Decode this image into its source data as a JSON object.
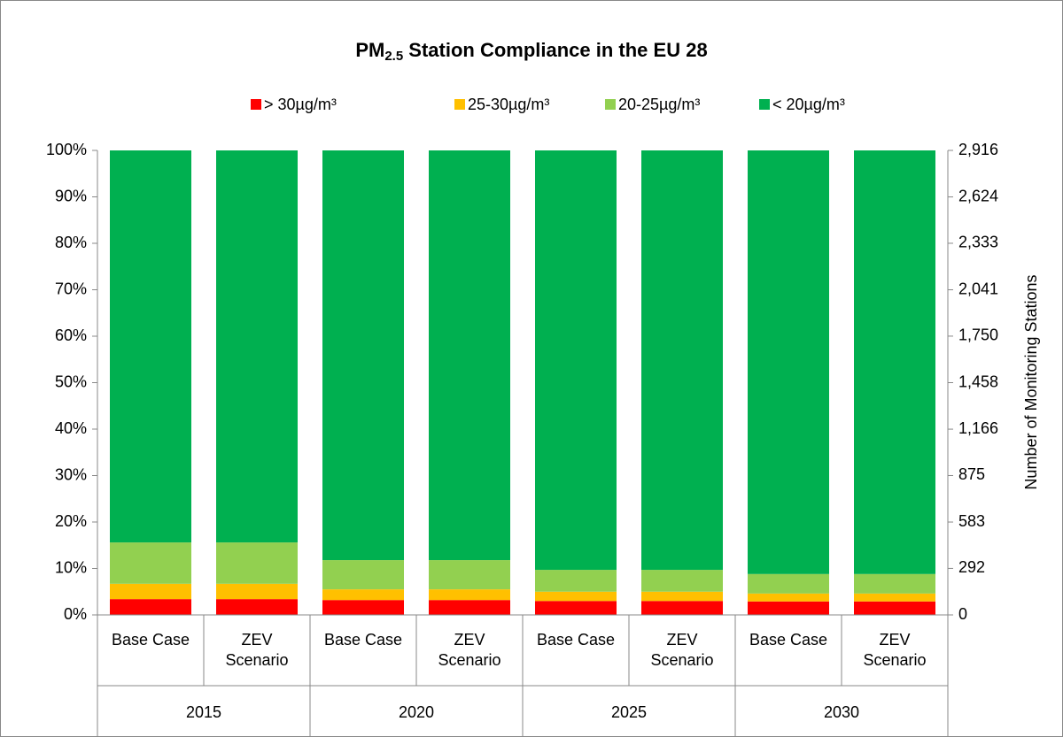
{
  "chart_data": {
    "type": "stacked_bar",
    "title": [
      "PM",
      "2.5",
      " Station Compliance in the EU 28"
    ],
    "categories": [
      "Base Case",
      "ZEV Scenario",
      "Base Case",
      "ZEV Scenario",
      "Base Case",
      "ZEV Scenario",
      "Base Case",
      "ZEV Scenario"
    ],
    "groups": [
      "2015",
      "2020",
      "2025",
      "2030"
    ],
    "series": [
      {
        "name": "> 30µg/m³",
        "color": "#ff0000",
        "values": [
          3.4,
          3.4,
          3.2,
          3.2,
          3.0,
          3.0,
          2.9,
          2.9
        ]
      },
      {
        "name": "25-30µg/m³",
        "color": "#ffc000",
        "values": [
          3.3,
          3.3,
          2.3,
          2.3,
          2.0,
          2.0,
          1.7,
          1.7
        ]
      },
      {
        "name": "20-25µg/m³",
        "color": "#92d050",
        "values": [
          8.9,
          8.9,
          6.3,
          6.3,
          4.7,
          4.7,
          4.2,
          4.2
        ]
      },
      {
        "name": "< 20µg/m³",
        "color": "#00b050",
        "values": [
          84.4,
          84.4,
          88.2,
          88.2,
          90.3,
          90.3,
          91.2,
          91.2
        ]
      }
    ],
    "ylim": [
      0,
      100
    ],
    "yticks": [
      {
        "value": 0,
        "label": "0%"
      },
      {
        "value": 10,
        "label": "10%"
      },
      {
        "value": 20,
        "label": "20%"
      },
      {
        "value": 30,
        "label": "30%"
      },
      {
        "value": 40,
        "label": "40%"
      },
      {
        "value": 50,
        "label": "50%"
      },
      {
        "value": 60,
        "label": "60%"
      },
      {
        "value": 70,
        "label": "70%"
      },
      {
        "value": 80,
        "label": "80%"
      },
      {
        "value": 90,
        "label": "90%"
      },
      {
        "value": 100,
        "label": "100%"
      }
    ],
    "y2label": "Number of Monitoring Stations",
    "y2lim": [
      0,
      2916
    ],
    "y2ticks": [
      0,
      292,
      583,
      875,
      {
        "value": 1166,
        "label": "1,166"
      },
      {
        "value": 1458,
        "label": "1,458"
      },
      {
        "value": 1750,
        "label": "1,750"
      },
      {
        "value": 2041,
        "label": "2,041"
      },
      {
        "value": 2333,
        "label": "2,333"
      },
      {
        "value": 2624,
        "label": "2,624"
      },
      {
        "value": 2916,
        "label": "2,916"
      }
    ],
    "legend": "top"
  }
}
